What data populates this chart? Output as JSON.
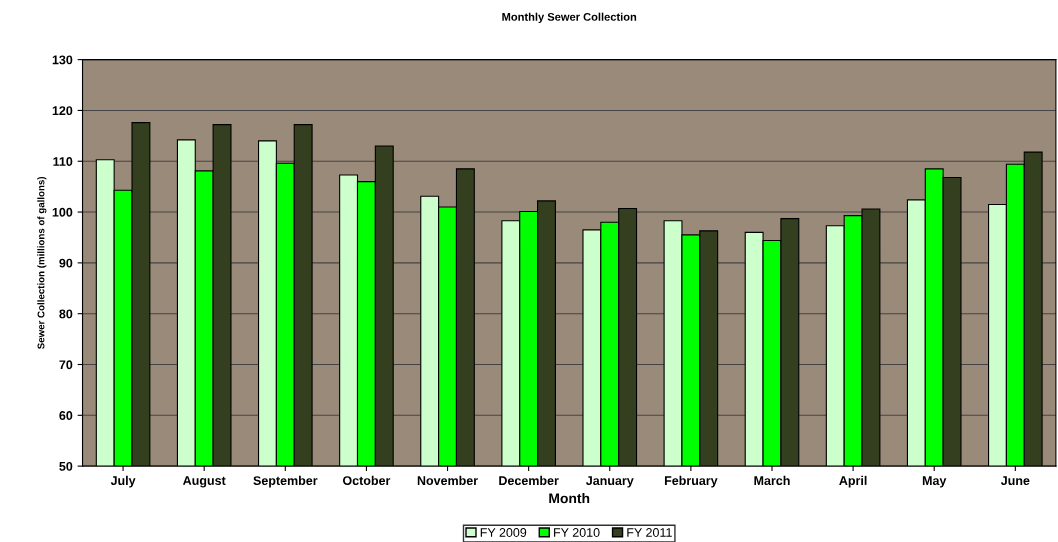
{
  "chart_data": {
    "type": "bar",
    "title": "Monthly Sewer Collection",
    "xlabel": "Month",
    "ylabel": "Sewer Collection (millions of gallons)",
    "categories": [
      "July",
      "August",
      "September",
      "October",
      "November",
      "December",
      "January",
      "February",
      "March",
      "April",
      "May",
      "June"
    ],
    "series": [
      {
        "name": "FY 2009",
        "color": "#ccffcc",
        "values": [
          110.3,
          114.2,
          114.0,
          107.3,
          103.1,
          98.3,
          96.5,
          98.3,
          96.0,
          97.3,
          102.4,
          101.5
        ]
      },
      {
        "name": "FY 2010",
        "color": "#00ff00",
        "values": [
          104.3,
          108.1,
          109.6,
          106.0,
          101.0,
          100.1,
          98.0,
          95.5,
          94.4,
          99.3,
          108.5,
          109.4
        ]
      },
      {
        "name": "FY 2011",
        "color": "#333f1f",
        "values": [
          117.6,
          117.2,
          117.2,
          113.0,
          108.5,
          102.2,
          100.7,
          96.3,
          98.7,
          100.6,
          106.8,
          111.8
        ]
      }
    ],
    "ylim": [
      50,
      130
    ],
    "yticks": [
      50,
      60,
      70,
      80,
      90,
      100,
      110,
      120,
      130
    ],
    "grid": "y",
    "legend": "bottom"
  }
}
